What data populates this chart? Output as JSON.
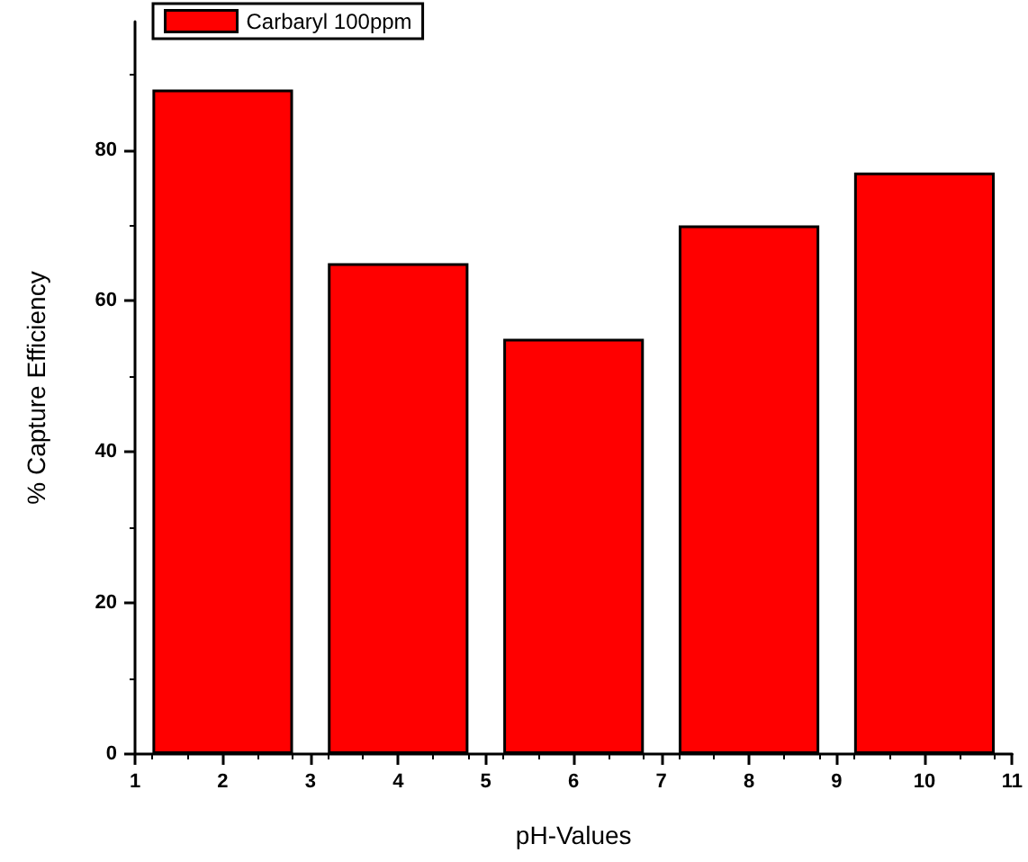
{
  "chart_data": {
    "type": "bar",
    "xlabel": "pH-Values",
    "ylabel": "% Capture Efficiency",
    "x": [
      2,
      4,
      6,
      8,
      10
    ],
    "series": [
      {
        "name": "Carbaryl 100ppm",
        "color": "#ff0000",
        "values": [
          88,
          65,
          55,
          70,
          77
        ]
      }
    ],
    "xlim": [
      1,
      11
    ],
    "xticks": [
      1,
      2,
      3,
      4,
      5,
      6,
      7,
      8,
      9,
      10,
      11
    ],
    "ylim": [
      0,
      97
    ],
    "yticks": [
      0,
      20,
      40,
      60,
      80
    ],
    "grid": false,
    "legend": "top left"
  }
}
